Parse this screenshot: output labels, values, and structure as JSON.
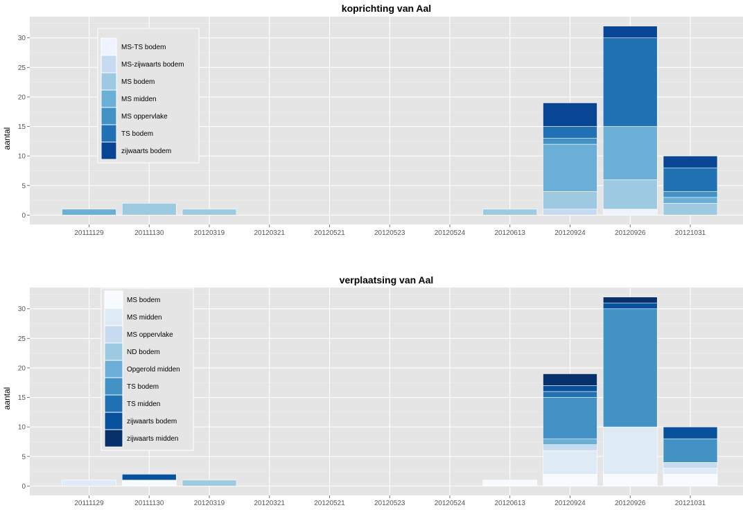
{
  "colors": {
    "panel_background": "#E5E5E5",
    "gridlines": "#FFFFFF"
  },
  "chart_data": [
    {
      "type": "bar",
      "stacked": true,
      "title": "koprichting van Aal",
      "xlabel": "",
      "ylabel": "aantal",
      "categories": [
        "20111129",
        "20111130",
        "20120319",
        "20120321",
        "20120521",
        "20120523",
        "20120524",
        "20120613",
        "20120924",
        "20120926",
        "20121031"
      ],
      "yticks": [
        0,
        5,
        10,
        15,
        20,
        25,
        30
      ],
      "ylim": [
        -1.6,
        33.6
      ],
      "grid": true,
      "legend_position": "top-left",
      "series": [
        {
          "name": "MS-TS bodem",
          "color": "#EFF3FF",
          "values": [
            0,
            0,
            0,
            0,
            0,
            0,
            0,
            0,
            0,
            1,
            0
          ]
        },
        {
          "name": "MS-zijwaarts bodem",
          "color": "#C6DBEF",
          "values": [
            0,
            0,
            0,
            0,
            0,
            0,
            0,
            0,
            1,
            0,
            0
          ]
        },
        {
          "name": "MS bodem",
          "color": "#9ECAE1",
          "values": [
            0,
            2,
            1,
            0,
            0,
            0,
            0,
            1,
            3,
            5,
            2
          ]
        },
        {
          "name": "MS midden",
          "color": "#6BAED6",
          "values": [
            1,
            0,
            0,
            0,
            0,
            0,
            0,
            0,
            8,
            9,
            1
          ]
        },
        {
          "name": "MS oppervlake",
          "color": "#4292C6",
          "values": [
            0,
            0,
            0,
            0,
            0,
            0,
            0,
            0,
            1,
            0,
            1
          ]
        },
        {
          "name": "TS bodem",
          "color": "#2171B5",
          "values": [
            0,
            0,
            0,
            0,
            0,
            0,
            0,
            0,
            2,
            15,
            4
          ]
        },
        {
          "name": "zijwaarts bodem",
          "color": "#084594",
          "values": [
            0,
            0,
            0,
            0,
            0,
            0,
            0,
            0,
            4,
            2,
            2
          ]
        }
      ]
    },
    {
      "type": "bar",
      "stacked": true,
      "title": "verplaatsing van Aal",
      "xlabel": "",
      "ylabel": "aantal",
      "categories": [
        "20111129",
        "20111130",
        "20120319",
        "20120321",
        "20120521",
        "20120523",
        "20120524",
        "20120613",
        "20120924",
        "20120926",
        "20121031"
      ],
      "yticks": [
        0,
        5,
        10,
        15,
        20,
        25,
        30
      ],
      "ylim": [
        -1.6,
        33.6
      ],
      "grid": true,
      "legend_position": "top-left",
      "series": [
        {
          "name": "MS bodem",
          "color": "#F7FBFF",
          "values": [
            0,
            1,
            0,
            0,
            0,
            0,
            0,
            1,
            2,
            2,
            2
          ]
        },
        {
          "name": "MS midden",
          "color": "#DEEBF7",
          "values": [
            1,
            0,
            0,
            0,
            0,
            0,
            0,
            0,
            4,
            8,
            1
          ]
        },
        {
          "name": "MS oppervlake",
          "color": "#C6DBEF",
          "values": [
            0,
            0,
            0,
            0,
            0,
            0,
            0,
            0,
            1,
            0,
            1
          ]
        },
        {
          "name": "ND bodem",
          "color": "#9ECAE1",
          "values": [
            0,
            0,
            1,
            0,
            0,
            0,
            0,
            0,
            0,
            0,
            0
          ]
        },
        {
          "name": "Opgerold midden",
          "color": "#6BAED6",
          "values": [
            0,
            0,
            0,
            0,
            0,
            0,
            0,
            0,
            1,
            0,
            0
          ]
        },
        {
          "name": "TS bodem",
          "color": "#4292C6",
          "values": [
            0,
            0,
            0,
            0,
            0,
            0,
            0,
            0,
            7,
            20,
            4
          ]
        },
        {
          "name": "TS midden",
          "color": "#2171B5",
          "values": [
            0,
            0,
            0,
            0,
            0,
            0,
            0,
            0,
            1,
            0,
            0
          ]
        },
        {
          "name": "zijwaarts bodem",
          "color": "#08519C",
          "values": [
            0,
            1,
            0,
            0,
            0,
            0,
            0,
            0,
            1,
            1,
            2
          ]
        },
        {
          "name": "zijwaarts midden",
          "color": "#08306B",
          "values": [
            0,
            0,
            0,
            0,
            0,
            0,
            0,
            0,
            2,
            1,
            0
          ]
        }
      ]
    }
  ]
}
